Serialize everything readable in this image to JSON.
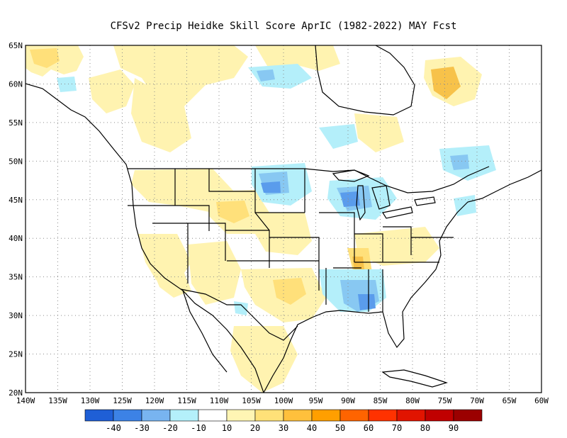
{
  "title": "CFSv2 Precip Heidke Skill Score AprIC (1982-2022) MAY Fcst",
  "map": {
    "lat_ticks": [
      "65N",
      "60N",
      "55N",
      "50N",
      "45N",
      "40N",
      "35N",
      "30N",
      "25N",
      "20N"
    ],
    "lon_ticks": [
      "140W",
      "135W",
      "130W",
      "125W",
      "120W",
      "115W",
      "110W",
      "105W",
      "100W",
      "95W",
      "90W",
      "85W",
      "80W",
      "75W",
      "70W",
      "65W",
      "60W"
    ],
    "lat_range": [
      20,
      65
    ],
    "lon_range": [
      -140,
      -60
    ],
    "grid": "dotted"
  },
  "colorbar": {
    "labels": [
      "-40",
      "-30",
      "-20",
      "-10",
      "10",
      "20",
      "30",
      "40",
      "50",
      "60",
      "70",
      "80",
      "90"
    ],
    "colors": [
      "#1f5fd6",
      "#3c82e6",
      "#78b4f0",
      "#b4f0fa",
      "#ffffff",
      "#fff5b4",
      "#ffe178",
      "#ffc03c",
      "#ff9f00",
      "#ff6400",
      "#ff3200",
      "#e11400",
      "#c00000",
      "#9b0000"
    ]
  },
  "colors": {
    "light_yellow": "#fff3b0",
    "yellow": "#ffe07a",
    "orange": "#f7c24a",
    "light_cyan": "#b4effa",
    "light_blue": "#88c8f2",
    "blue": "#5a9cec"
  }
}
